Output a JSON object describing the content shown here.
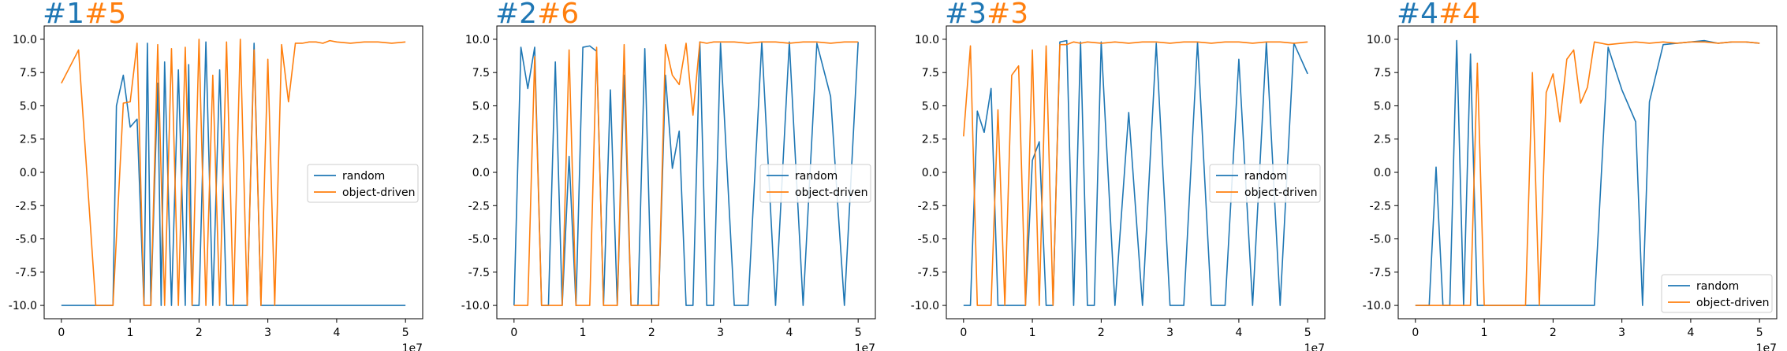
{
  "colors": {
    "random": "#1f77b4",
    "object_driven": "#ff7f0e"
  },
  "chart_data": [
    {
      "type": "line",
      "title_parts": [
        {
          "text": "#1",
          "color": "#1f77b4"
        },
        {
          "text": "#5",
          "color": "#ff7f0e"
        }
      ],
      "x_offset_label": "1e7",
      "xticks": [
        "0",
        "1",
        "2",
        "3",
        "4",
        "5"
      ],
      "yticks": [
        "-10.0",
        "-7.5",
        "-5.0",
        "-2.5",
        "0.0",
        "2.5",
        "5.0",
        "7.5",
        "10.0"
      ],
      "xlim": [
        -0.25,
        5.25
      ],
      "ylim": [
        -11,
        11
      ],
      "grid": false,
      "legend_position": "center-right",
      "series": [
        {
          "name": "random",
          "color": "#1f77b4",
          "x": [
            0,
            0.25,
            0.5,
            0.75,
            0.8,
            0.9,
            1.0,
            1.1,
            1.2,
            1.25,
            1.3,
            1.4,
            1.45,
            1.5,
            1.6,
            1.7,
            1.8,
            1.85,
            1.9,
            2.0,
            2.1,
            2.2,
            2.3,
            2.4,
            2.5,
            2.6,
            2.7,
            2.8,
            2.9,
            3.0,
            3.1,
            3.5,
            3.6,
            3.7,
            3.8,
            3.9,
            4.0,
            4.1,
            4.2,
            4.3,
            4.4,
            4.5,
            4.6,
            4.7,
            4.8,
            4.9,
            5.0
          ],
          "y": [
            -10,
            -10,
            -10,
            -10,
            5,
            7.3,
            3.4,
            4,
            -10,
            9.7,
            -10,
            6.7,
            -10,
            8.3,
            -10,
            7.7,
            -10,
            8.1,
            -10,
            -10,
            9.8,
            -10,
            7.7,
            -10,
            -10,
            -10,
            -10,
            9.7,
            -10,
            -10,
            -10,
            -10,
            -10,
            -10,
            -10,
            -10,
            -10,
            -10,
            -10,
            -10,
            -10,
            -10,
            -10,
            -10,
            -10,
            -10,
            -10
          ]
        },
        {
          "name": "object-driven",
          "color": "#ff7f0e",
          "x": [
            0,
            0.25,
            0.5,
            0.75,
            0.9,
            1.0,
            1.1,
            1.2,
            1.3,
            1.4,
            1.5,
            1.6,
            1.7,
            1.8,
            1.9,
            2.0,
            2.1,
            2.2,
            2.3,
            2.4,
            2.5,
            2.6,
            2.7,
            2.8,
            2.9,
            3.0,
            3.1,
            3.2,
            3.3,
            3.4,
            3.5,
            3.6,
            3.7,
            3.8,
            3.9,
            4.0,
            4.2,
            4.4,
            4.6,
            4.8,
            5.0
          ],
          "y": [
            6.7,
            9.2,
            -10,
            -10,
            5.2,
            5.3,
            9.7,
            -10,
            -10,
            9.6,
            -10,
            9.3,
            -10,
            9.4,
            -10,
            10,
            -10,
            7.3,
            -10,
            9.8,
            -10,
            10,
            -10,
            9.2,
            -10,
            8.5,
            -10,
            9.6,
            5.3,
            9.7,
            9.7,
            9.8,
            9.8,
            9.7,
            9.9,
            9.8,
            9.7,
            9.8,
            9.8,
            9.7,
            9.8
          ]
        }
      ]
    },
    {
      "type": "line",
      "title_parts": [
        {
          "text": "#2",
          "color": "#1f77b4"
        },
        {
          "text": "#6",
          "color": "#ff7f0e"
        }
      ],
      "x_offset_label": "1e7",
      "xticks": [
        "0",
        "1",
        "2",
        "3",
        "4",
        "5"
      ],
      "yticks": [
        "-10.0",
        "-7.5",
        "-5.0",
        "-2.5",
        "0.0",
        "2.5",
        "5.0",
        "7.5",
        "10.0"
      ],
      "xlim": [
        -0.25,
        5.25
      ],
      "ylim": [
        -11,
        11
      ],
      "grid": false,
      "legend_position": "center-right",
      "series": [
        {
          "name": "random",
          "color": "#1f77b4",
          "x": [
            0,
            0.1,
            0.2,
            0.3,
            0.4,
            0.5,
            0.6,
            0.7,
            0.8,
            0.9,
            1.0,
            1.1,
            1.2,
            1.3,
            1.4,
            1.5,
            1.6,
            1.7,
            1.8,
            1.9,
            2.0,
            2.1,
            2.2,
            2.3,
            2.4,
            2.5,
            2.6,
            2.7,
            2.8,
            2.9,
            3.0,
            3.2,
            3.4,
            3.6,
            3.8,
            4.0,
            4.2,
            4.4,
            4.6,
            4.8,
            5.0
          ],
          "y": [
            -10,
            9.4,
            6.3,
            9.4,
            -10,
            -10,
            8.3,
            -10,
            1.2,
            -10,
            9.4,
            9.5,
            9.1,
            -10,
            6.2,
            -10,
            7.3,
            -10,
            -10,
            9.3,
            -10,
            -10,
            7.3,
            0.3,
            3.1,
            -10,
            -10,
            9.8,
            -10,
            -10,
            9.7,
            -10,
            -10,
            9.8,
            -10,
            9.8,
            -10,
            9.7,
            5.7,
            -10,
            9.8
          ]
        },
        {
          "name": "object-driven",
          "color": "#ff7f0e",
          "x": [
            0,
            0.1,
            0.2,
            0.3,
            0.4,
            0.5,
            0.6,
            0.7,
            0.8,
            0.9,
            1.0,
            1.1,
            1.2,
            1.3,
            1.4,
            1.5,
            1.6,
            1.7,
            1.8,
            1.9,
            2.0,
            2.1,
            2.2,
            2.3,
            2.4,
            2.5,
            2.6,
            2.7,
            2.8,
            2.9,
            3.0,
            3.2,
            3.4,
            3.6,
            3.8,
            4.0,
            4.2,
            4.4,
            4.6,
            4.8,
            5.0
          ],
          "y": [
            -10,
            -10,
            -10,
            8.7,
            -10,
            -10,
            -10,
            -10,
            9.2,
            -10,
            -10,
            -10,
            9.4,
            -10,
            -10,
            -10,
            9.6,
            -10,
            -10,
            -10,
            -10,
            -10,
            9.6,
            7.3,
            6.6,
            9.7,
            4.3,
            9.8,
            9.7,
            9.8,
            9.8,
            9.8,
            9.7,
            9.8,
            9.8,
            9.7,
            9.8,
            9.8,
            9.7,
            9.8,
            9.8
          ]
        }
      ]
    },
    {
      "type": "line",
      "title_parts": [
        {
          "text": "#3",
          "color": "#1f77b4"
        },
        {
          "text": "#3",
          "color": "#ff7f0e"
        }
      ],
      "x_offset_label": "1e7",
      "xticks": [
        "0",
        "1",
        "2",
        "3",
        "4",
        "5"
      ],
      "yticks": [
        "-10.0",
        "-7.5",
        "-5.0",
        "-2.5",
        "0.0",
        "2.5",
        "5.0",
        "7.5",
        "10.0"
      ],
      "xlim": [
        -0.25,
        5.25
      ],
      "ylim": [
        -11,
        11
      ],
      "grid": false,
      "legend_position": "center-right",
      "series": [
        {
          "name": "random",
          "color": "#1f77b4",
          "x": [
            0,
            0.1,
            0.2,
            0.3,
            0.4,
            0.5,
            0.7,
            0.9,
            1.0,
            1.1,
            1.2,
            1.3,
            1.4,
            1.5,
            1.6,
            1.7,
            1.8,
            1.9,
            2.0,
            2.2,
            2.4,
            2.6,
            2.8,
            3.0,
            3.2,
            3.4,
            3.6,
            3.8,
            4.0,
            4.2,
            4.4,
            4.6,
            4.8,
            5.0
          ],
          "y": [
            -10,
            -10,
            4.6,
            3.0,
            6.3,
            -10,
            -10,
            -10,
            0.9,
            2.3,
            -10,
            -10,
            9.8,
            9.9,
            -10,
            9.8,
            -10,
            -10,
            9.8,
            -10,
            4.5,
            -10,
            9.7,
            -10,
            -10,
            9.8,
            -10,
            -10,
            8.5,
            -10,
            9.8,
            -10,
            9.7,
            7.4
          ]
        },
        {
          "name": "object-driven",
          "color": "#ff7f0e",
          "x": [
            0,
            0.1,
            0.2,
            0.3,
            0.4,
            0.5,
            0.6,
            0.7,
            0.8,
            0.9,
            1.0,
            1.1,
            1.2,
            1.3,
            1.4,
            1.5,
            1.6,
            1.7,
            1.8,
            2.0,
            2.2,
            2.4,
            2.6,
            2.8,
            3.0,
            3.2,
            3.4,
            3.6,
            3.8,
            4.0,
            4.2,
            4.4,
            4.6,
            4.8,
            5.0
          ],
          "y": [
            2.7,
            9.5,
            -10,
            -10,
            -10,
            4.7,
            -10,
            7.3,
            8.0,
            -10,
            9.2,
            -10,
            9.5,
            -10,
            9.6,
            9.6,
            9.8,
            9.7,
            9.8,
            9.7,
            9.8,
            9.7,
            9.8,
            9.8,
            9.7,
            9.8,
            9.8,
            9.7,
            9.8,
            9.8,
            9.7,
            9.8,
            9.8,
            9.7,
            9.8
          ]
        }
      ]
    },
    {
      "type": "line",
      "title_parts": [
        {
          "text": "#4",
          "color": "#1f77b4"
        },
        {
          "text": "#4",
          "color": "#ff7f0e"
        }
      ],
      "x_offset_label": "1e7",
      "xticks": [
        "0",
        "1",
        "2",
        "3",
        "4",
        "5"
      ],
      "yticks": [
        "-10.0",
        "-7.5",
        "-5.0",
        "-2.5",
        "0.0",
        "2.5",
        "5.0",
        "7.5",
        "10.0"
      ],
      "xlim": [
        -0.25,
        5.25
      ],
      "ylim": [
        -11,
        11
      ],
      "grid": false,
      "legend_position": "lower-right",
      "series": [
        {
          "name": "random",
          "color": "#1f77b4",
          "x": [
            0,
            0.2,
            0.3,
            0.4,
            0.5,
            0.6,
            0.7,
            0.8,
            0.9,
            1.0,
            1.2,
            1.4,
            1.6,
            1.8,
            2.0,
            2.2,
            2.4,
            2.6,
            2.8,
            3.0,
            3.2,
            3.3,
            3.4,
            3.6,
            3.8,
            4.0,
            4.2,
            4.4,
            4.6,
            4.8,
            5.0
          ],
          "y": [
            -10,
            -10,
            0.4,
            -10,
            -10,
            9.9,
            -10,
            8.9,
            -10,
            -10,
            -10,
            -10,
            -10,
            -10,
            -10,
            -10,
            -10,
            -10,
            9.4,
            6.2,
            3.8,
            -10,
            5.3,
            9.6,
            9.7,
            9.8,
            9.9,
            9.7,
            9.8,
            9.8,
            9.7
          ]
        },
        {
          "name": "object-driven",
          "color": "#ff7f0e",
          "x": [
            0,
            0.2,
            0.4,
            0.6,
            0.8,
            0.9,
            1.0,
            1.1,
            1.2,
            1.4,
            1.6,
            1.7,
            1.8,
            1.9,
            2.0,
            2.1,
            2.2,
            2.3,
            2.4,
            2.5,
            2.6,
            2.8,
            3.0,
            3.2,
            3.4,
            3.6,
            3.8,
            4.0,
            4.2,
            4.4,
            4.6,
            4.8,
            5.0
          ],
          "y": [
            -10,
            -10,
            -10,
            -10,
            -10,
            8.2,
            -10,
            -10,
            -10,
            -10,
            -10,
            7.5,
            -10,
            6.0,
            7.4,
            3.8,
            8.5,
            9.2,
            5.2,
            6.4,
            9.8,
            9.6,
            9.7,
            9.8,
            9.7,
            9.8,
            9.7,
            9.8,
            9.8,
            9.7,
            9.8,
            9.8,
            9.7
          ]
        }
      ]
    }
  ]
}
